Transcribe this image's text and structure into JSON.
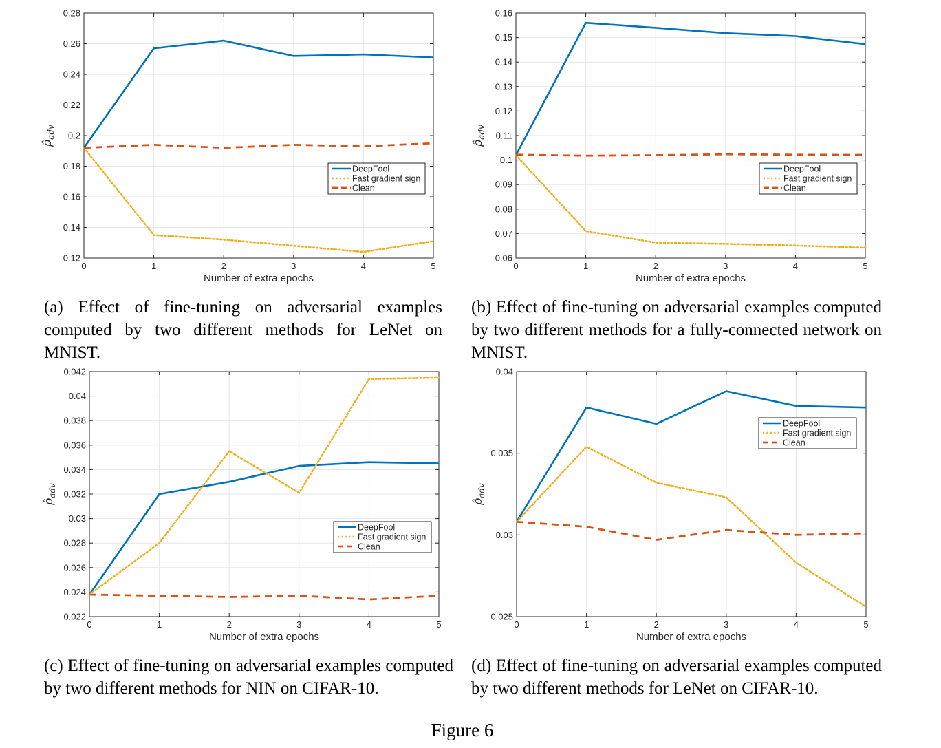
{
  "figure_label": "Figure 6",
  "colors": {
    "deepfool": "#0072bd",
    "fgs": "#edb120",
    "clean": "#d95319",
    "grid": "#e6e6e6",
    "axis": "#262626"
  },
  "chart_data": [
    {
      "id": "a",
      "type": "line",
      "caption": "(a) Effect of fine-tuning on adversarial examples computed by two different methods for LeNet on MNIST.",
      "xlabel": "Number of extra epochs",
      "ylabel": "ρ̂adv",
      "ylabel_main": "ρ̂",
      "ylabel_sub": "adv",
      "x": [
        0,
        1,
        2,
        3,
        4,
        5
      ],
      "xlim": [
        0,
        5
      ],
      "ylim": [
        0.12,
        0.28
      ],
      "yticks": [
        0.12,
        0.14,
        0.16,
        0.18,
        0.2,
        0.22,
        0.24,
        0.26,
        0.28
      ],
      "ytick_labels": [
        "0.12",
        "0.14",
        "0.16",
        "0.18",
        "0.2",
        "0.22",
        "0.24",
        "0.26",
        "0.28"
      ],
      "xtick_labels": [
        "0",
        "1",
        "2",
        "3",
        "4",
        "5"
      ],
      "legend_position": "right-middle",
      "series": [
        {
          "name": "DeepFool",
          "style": "solid",
          "values": [
            0.192,
            0.257,
            0.262,
            0.252,
            0.253,
            0.251
          ]
        },
        {
          "name": "Fast gradient sign",
          "style": "dotted",
          "values": [
            0.192,
            0.135,
            0.132,
            0.128,
            0.124,
            0.131
          ]
        },
        {
          "name": "Clean",
          "style": "dashed",
          "values": [
            0.192,
            0.194,
            0.192,
            0.194,
            0.193,
            0.195
          ]
        }
      ]
    },
    {
      "id": "b",
      "type": "line",
      "caption": "(b) Effect of fine-tuning on adversarial examples computed by two different methods for a fully-connected network on MNIST.",
      "xlabel": "Number of extra epochs",
      "ylabel": "ρ̂adv",
      "ylabel_main": "ρ̂",
      "ylabel_sub": "adv",
      "x": [
        0,
        1,
        2,
        3,
        4,
        5
      ],
      "xlim": [
        0,
        5
      ],
      "ylim": [
        0.06,
        0.16
      ],
      "yticks": [
        0.06,
        0.07,
        0.08,
        0.09,
        0.1,
        0.11,
        0.12,
        0.13,
        0.14,
        0.15,
        0.16
      ],
      "ytick_labels": [
        "0.06",
        "0.07",
        "0.08",
        "0.09",
        "0.1",
        "0.11",
        "0.12",
        "0.13",
        "0.14",
        "0.15",
        "0.16"
      ],
      "xtick_labels": [
        "0",
        "1",
        "2",
        "3",
        "4",
        "5"
      ],
      "legend_position": "right-middle",
      "series": [
        {
          "name": "DeepFool",
          "style": "solid",
          "values": [
            0.102,
            0.156,
            0.154,
            0.1518,
            0.1506,
            0.1473
          ]
        },
        {
          "name": "Fast gradient sign",
          "style": "dotted",
          "values": [
            0.102,
            0.071,
            0.0663,
            0.0658,
            0.0651,
            0.0642
          ]
        },
        {
          "name": "Clean",
          "style": "dashed",
          "values": [
            0.1022,
            0.1018,
            0.102,
            0.1024,
            0.1022,
            0.1021
          ]
        }
      ]
    },
    {
      "id": "c",
      "type": "line",
      "caption": "(c) Effect of fine-tuning on adversarial examples computed by two different methods for NIN on CIFAR-10.",
      "xlabel": "Number of extra epochs",
      "ylabel": "ρ̂adv",
      "ylabel_main": "ρ̂",
      "ylabel_sub": "adv",
      "x": [
        0,
        1,
        2,
        3,
        4,
        5
      ],
      "xlim": [
        0,
        5
      ],
      "ylim": [
        0.022,
        0.042
      ],
      "yticks": [
        0.022,
        0.024,
        0.026,
        0.028,
        0.03,
        0.032,
        0.034,
        0.036,
        0.038,
        0.04,
        0.042
      ],
      "ytick_labels": [
        "0.022",
        "0.024",
        "0.026",
        "0.028",
        "0.03",
        "0.032",
        "0.034",
        "0.036",
        "0.038",
        "0.04",
        "0.042"
      ],
      "xtick_labels": [
        "0",
        "1",
        "2",
        "3",
        "4",
        "5"
      ],
      "legend_position": "bottom-right",
      "series": [
        {
          "name": "DeepFool",
          "style": "solid",
          "values": [
            0.0238,
            0.032,
            0.033,
            0.0343,
            0.0346,
            0.0345
          ]
        },
        {
          "name": "Fast gradient sign",
          "style": "dotted",
          "values": [
            0.0238,
            0.028,
            0.0355,
            0.0321,
            0.0414,
            0.0415
          ]
        },
        {
          "name": "Clean",
          "style": "dashed",
          "values": [
            0.0238,
            0.0237,
            0.0236,
            0.0237,
            0.0234,
            0.0237
          ]
        }
      ]
    },
    {
      "id": "d",
      "type": "line",
      "caption": "(d) Effect of fine-tuning on adversarial examples computed by two different methods for LeNet on CIFAR-10.",
      "xlabel": "Number of extra epochs",
      "ylabel": "ρ̂adv",
      "ylabel_main": "ρ̂",
      "ylabel_sub": "adv",
      "x": [
        0,
        1,
        2,
        3,
        4,
        5
      ],
      "xlim": [
        0,
        5
      ],
      "ylim": [
        0.025,
        0.04
      ],
      "yticks": [
        0.025,
        0.03,
        0.035,
        0.04
      ],
      "ytick_labels": [
        "0.025",
        "0.03",
        "0.035",
        "0.04"
      ],
      "xtick_labels": [
        "0",
        "1",
        "2",
        "3",
        "4",
        "5"
      ],
      "legend_position": "top-right",
      "series": [
        {
          "name": "DeepFool",
          "style": "solid",
          "values": [
            0.0308,
            0.0378,
            0.0368,
            0.0388,
            0.0379,
            0.0378
          ]
        },
        {
          "name": "Fast gradient sign",
          "style": "dotted",
          "values": [
            0.0308,
            0.0354,
            0.0332,
            0.0323,
            0.0283,
            0.0256
          ]
        },
        {
          "name": "Clean",
          "style": "dashed",
          "values": [
            0.0308,
            0.0305,
            0.0297,
            0.0303,
            0.03,
            0.0301
          ]
        }
      ]
    }
  ]
}
